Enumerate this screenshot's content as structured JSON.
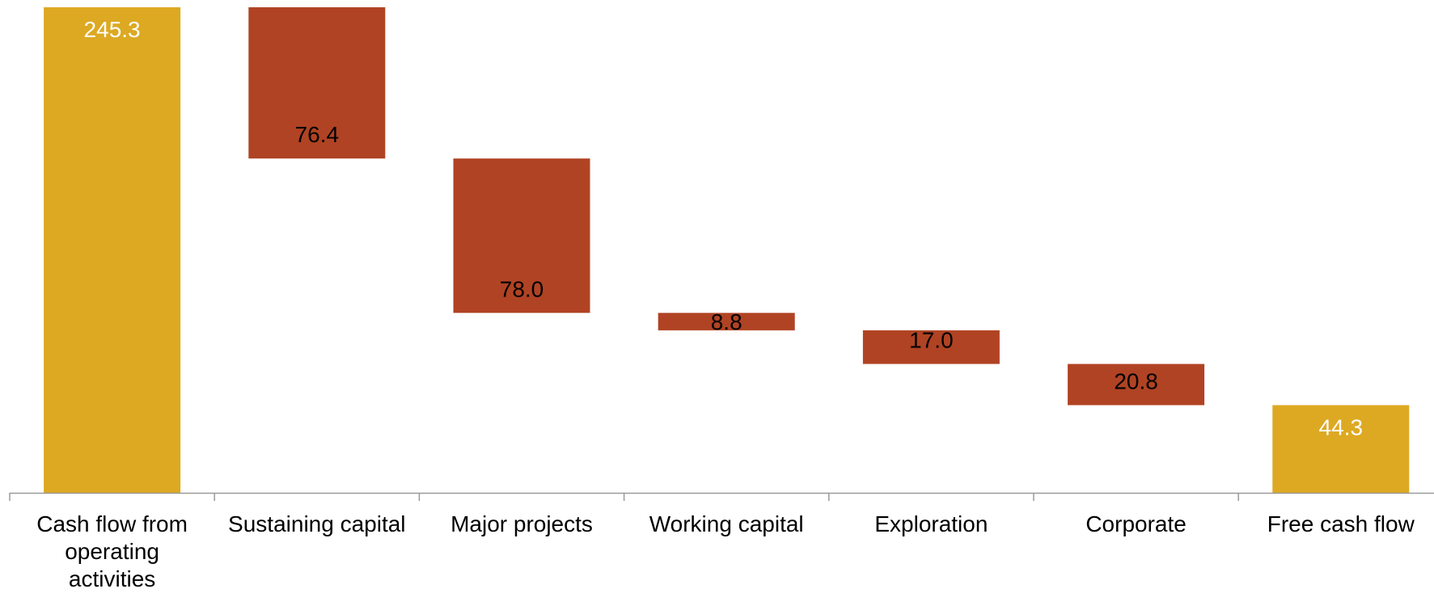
{
  "chart_data": {
    "type": "bar",
    "subtype": "waterfall",
    "categories": [
      [
        "Cash flow from",
        "operating",
        "activities"
      ],
      [
        "Sustaining capital"
      ],
      [
        "Major projects"
      ],
      [
        "Working capital"
      ],
      [
        "Exploration"
      ],
      [
        "Corporate"
      ],
      [
        "Free cash flow"
      ]
    ],
    "values": [
      245.3,
      -76.4,
      -78.0,
      -8.8,
      -17.0,
      -20.8,
      44.3
    ],
    "value_labels": [
      "245.3",
      "76.4",
      "78.0",
      "8.8",
      "17.0",
      "20.8",
      "44.3"
    ],
    "bar_kind": [
      "total",
      "decrease",
      "decrease",
      "decrease",
      "decrease",
      "decrease",
      "total"
    ],
    "ylim": [
      0,
      245.3
    ],
    "grid": false,
    "legend": "none",
    "colors": {
      "total": "#DDA922",
      "decrease": "#B04323",
      "total_label": "#FFFFFF",
      "decrease_label": "#000000",
      "axis": "#9A9A9A"
    }
  }
}
